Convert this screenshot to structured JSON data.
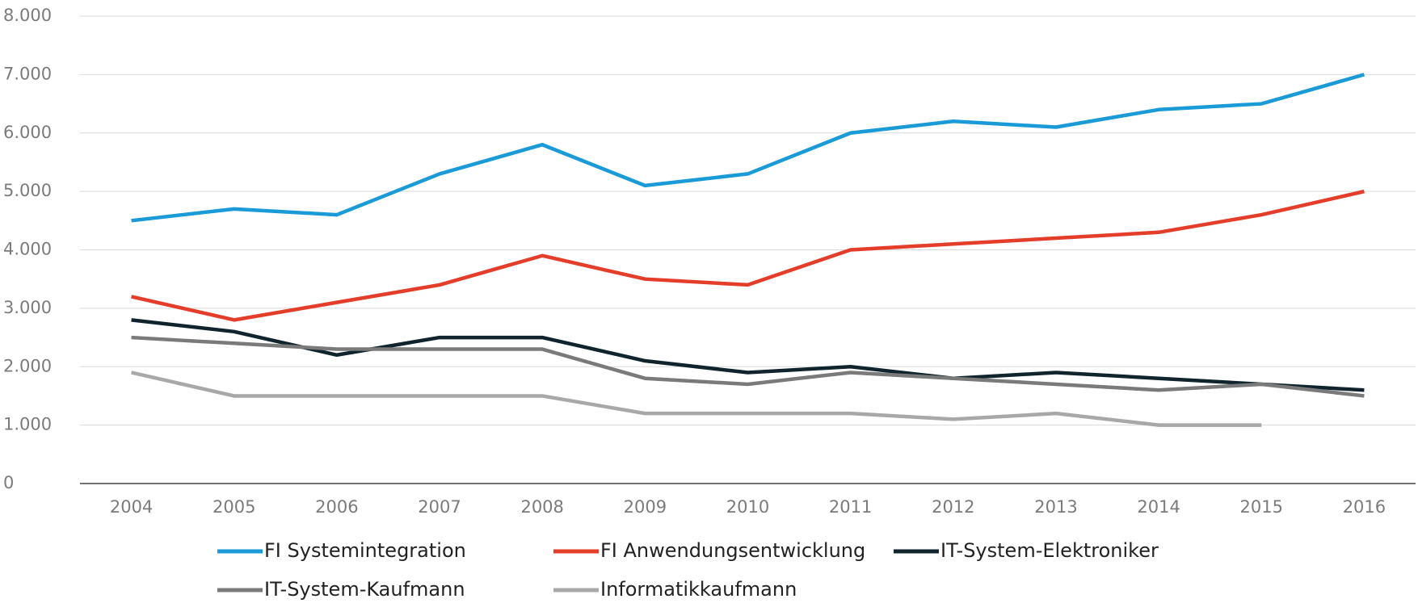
{
  "chart_data": {
    "type": "line",
    "categories": [
      "2004",
      "2005",
      "2006",
      "2007",
      "2008",
      "2009",
      "2010",
      "2011",
      "2012",
      "2013",
      "2014",
      "2015",
      "2016"
    ],
    "series": [
      {
        "name": "FI Systemintegration",
        "color": "#1a9ad6",
        "values": [
          4500,
          4700,
          4600,
          5300,
          5800,
          5100,
          5300,
          6000,
          6200,
          6100,
          6400,
          6500,
          7000
        ]
      },
      {
        "name": "FI Anwendungsentwicklung",
        "color": "#e43d2a",
        "values": [
          3200,
          2800,
          3100,
          3400,
          3900,
          3500,
          3400,
          4000,
          4100,
          4200,
          4300,
          4600,
          5000
        ]
      },
      {
        "name": "IT-System-Elektroniker",
        "color": "#10242e",
        "values": [
          2800,
          2600,
          2200,
          2500,
          2500,
          2100,
          1900,
          2000,
          1800,
          1900,
          1800,
          1700,
          1600
        ]
      },
      {
        "name": "IT-System-Kaufmann",
        "color": "#7a7a7a",
        "values": [
          2500,
          2400,
          2300,
          2300,
          2300,
          1800,
          1700,
          1900,
          1800,
          1700,
          1600,
          1700,
          1500
        ]
      },
      {
        "name": "Informatikkaufmann",
        "color": "#a8a8a8",
        "values": [
          1900,
          1500,
          1500,
          1500,
          1500,
          1200,
          1200,
          1200,
          1100,
          1200,
          1000,
          1000,
          null
        ]
      }
    ],
    "ylim": [
      0,
      8000
    ],
    "yticks": [
      0,
      {
        "value": 1000,
        "label": "1.000"
      },
      {
        "value": 2000,
        "label": "2.000"
      },
      {
        "value": 3000,
        "label": "3.000"
      },
      {
        "value": 4000,
        "label": "4.000"
      },
      {
        "value": 5000,
        "label": "5.000"
      },
      {
        "value": 6000,
        "label": "6.000"
      },
      {
        "value": 7000,
        "label": "7.000"
      },
      {
        "value": 8000,
        "label": "8.000"
      }
    ],
    "grid": true
  }
}
